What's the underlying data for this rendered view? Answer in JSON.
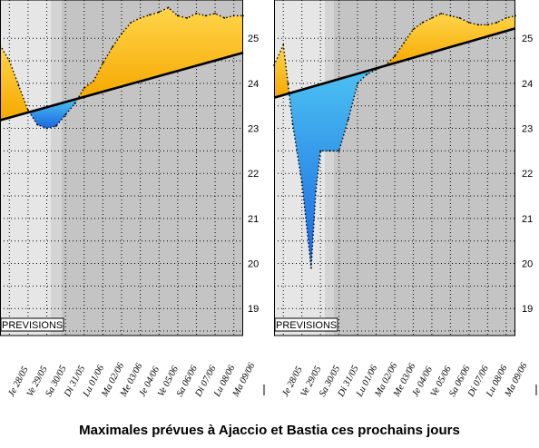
{
  "caption": "Maximales prévues à Ajaccio et Bastia ces prochains jours",
  "forecast_label": "PREVISIONS",
  "colors": {
    "above_trend_fill": "#ffb300",
    "above_trend_highlight": "#ffd54a",
    "below_trend_fill": "#33b8ee",
    "below_trend_deep": "#1e78e6",
    "background_past": "#e6e6e6",
    "background_transition": "#d4d4d4",
    "background_forecast": "#c4c4c4"
  },
  "chart_data": [
    {
      "type": "area",
      "y_ticks": [
        "19",
        "20",
        "21",
        "22",
        "23",
        "24",
        "25"
      ],
      "ylim": [
        18.4,
        25.85
      ],
      "grid": true,
      "categories": [
        "Je 28/05",
        "Ve 29/05",
        "Sa 30/05",
        "Di 31/05",
        "Lu 01/06",
        "Ma 02/06",
        "Me 03/06",
        "Je 04/06",
        "Ve 05/06",
        "Sa 06/06",
        "Di 07/06",
        "Lu 08/06",
        "Ma 09/06"
      ],
      "x_range": [
        -0.5,
        12.5
      ],
      "forecast": {
        "x": [
          -0.5,
          0.0,
          0.5,
          1.0,
          1.5,
          2.0,
          2.5,
          3.0,
          3.5,
          4.0,
          4.5,
          5.0,
          5.5,
          6.0,
          6.5,
          7.0,
          7.5,
          8.0,
          8.5,
          9.0,
          9.5,
          10.0,
          10.5,
          11.0,
          11.5,
          12.0,
          12.5
        ],
        "values": [
          24.85,
          24.5,
          23.95,
          23.4,
          23.08,
          23.0,
          23.05,
          23.3,
          23.55,
          23.9,
          24.05,
          24.45,
          24.8,
          25.1,
          25.35,
          25.45,
          25.52,
          25.58,
          25.68,
          25.5,
          25.45,
          25.55,
          25.5,
          25.55,
          25.45,
          25.5,
          25.5
        ]
      },
      "trend": {
        "x": [
          -0.5,
          12.5
        ],
        "values": [
          23.18,
          24.68
        ]
      }
    },
    {
      "type": "area",
      "y_ticks": [
        "19",
        "20",
        "21",
        "22",
        "23",
        "24",
        "25"
      ],
      "ylim": [
        18.4,
        25.85
      ],
      "grid": true,
      "categories": [
        "Je 28/05",
        "Ve 29/05",
        "Sa 30/05",
        "Di 31/05",
        "Lu 01/06",
        "Ma 02/06",
        "Me 03/06",
        "Je 04/06",
        "Ve 05/06",
        "Sa 06/06",
        "Di 07/06",
        "Lu 08/06",
        "Ma 09/06"
      ],
      "x_range": [
        -0.5,
        12.5
      ],
      "forecast": {
        "x": [
          -0.5,
          0.0,
          0.25,
          0.5,
          1.0,
          1.5,
          1.75,
          2.0,
          2.5,
          3.0,
          3.5,
          4.0,
          4.5,
          5.0,
          5.5,
          6.0,
          6.5,
          7.0,
          7.5,
          8.0,
          8.5,
          9.0,
          9.5,
          10.0,
          10.5,
          11.0,
          11.5,
          12.0,
          12.5
        ],
        "values": [
          24.4,
          24.85,
          24.0,
          23.1,
          21.8,
          19.9,
          21.6,
          22.5,
          22.5,
          22.5,
          23.2,
          24.0,
          24.2,
          24.3,
          24.4,
          24.6,
          24.9,
          25.2,
          25.35,
          25.45,
          25.55,
          25.5,
          25.45,
          25.35,
          25.3,
          25.3,
          25.35,
          25.45,
          25.5
        ]
      },
      "trend": {
        "x": [
          -0.5,
          12.5
        ],
        "values": [
          23.68,
          25.22
        ]
      }
    }
  ]
}
